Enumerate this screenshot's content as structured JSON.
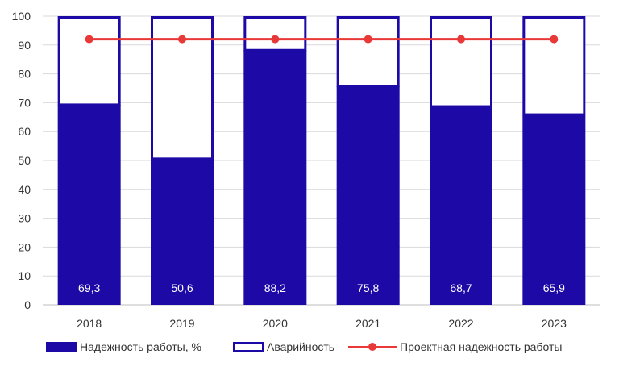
{
  "chart_data": {
    "type": "bar",
    "categories": [
      "2018",
      "2019",
      "2020",
      "2021",
      "2022",
      "2023"
    ],
    "series": [
      {
        "name": "Надежность работы, %",
        "type": "bar",
        "values": [
          69.3,
          50.6,
          88.2,
          75.8,
          68.7,
          65.9
        ],
        "data_labels": [
          "69,3",
          "50,6",
          "88,2",
          "75,8",
          "68,7",
          "65,9"
        ]
      },
      {
        "name": "Аварийность",
        "type": "bar",
        "stacked": true,
        "values": [
          30.7,
          49.4,
          11.8,
          24.2,
          31.3,
          34.1
        ]
      },
      {
        "name": "Проектная надежность работы",
        "type": "line",
        "values": [
          92,
          92,
          92,
          92,
          92,
          92
        ]
      }
    ],
    "ylim": [
      0,
      100
    ],
    "yticks": [
      0,
      10,
      20,
      30,
      40,
      50,
      60,
      70,
      80,
      90,
      100
    ],
    "grid": true,
    "legend_position": "bottom",
    "colors": {
      "bar": "#1d0aa6",
      "line": "#e83838",
      "grid": "#d9d9d9",
      "axis": "#bfbfbf"
    }
  }
}
